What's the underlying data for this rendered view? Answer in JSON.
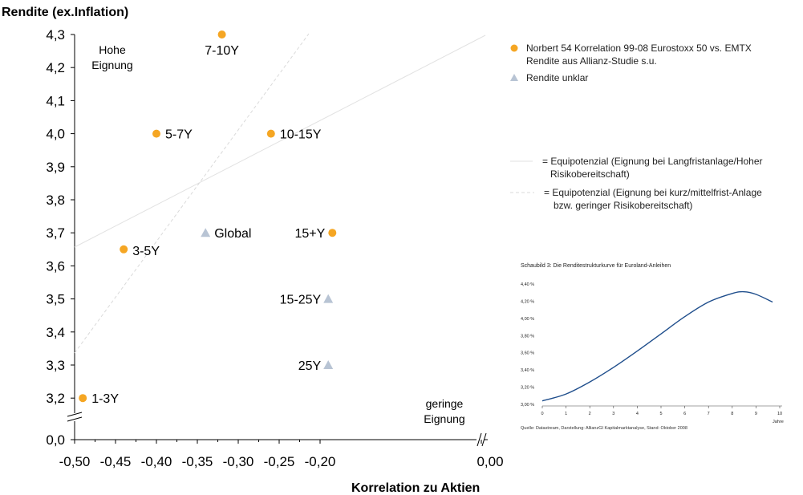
{
  "colors": {
    "orange": "#F5A623",
    "grey_triangle": "#B8C4D4",
    "inset_line": "#1F4E8C",
    "axis": "#000000",
    "equi_line": "#E2E2E2"
  },
  "chart_data": [
    {
      "type": "scatter",
      "title": "",
      "ylabel": "Rendite (ex.Inflation)",
      "xlabel": "Korrelation zu Aktien",
      "xlim": [
        -0.5,
        0.0
      ],
      "ylim": [
        3.15,
        4.3
      ],
      "y_axis_break": true,
      "y_bottom_tick": "0,0",
      "x_ticks": [
        "-0,50",
        "-0,45",
        "-0,40",
        "-0,35",
        "-0,30",
        "-0,25",
        "-0,20",
        "0,00"
      ],
      "y_ticks": [
        "3,2",
        "3,3",
        "3,4",
        "3,5",
        "3,6",
        "3,7",
        "3,8",
        "3,9",
        "4,0",
        "4,1",
        "4,2",
        "4,3"
      ],
      "points": [
        {
          "label": "1-3Y",
          "x": -0.49,
          "y": 3.2,
          "marker": "circle",
          "label_side": "right"
        },
        {
          "label": "3-5Y",
          "x": -0.44,
          "y": 3.65,
          "marker": "circle",
          "label_side": "right-below"
        },
        {
          "label": "5-7Y",
          "x": -0.4,
          "y": 4.0,
          "marker": "circle",
          "label_side": "right"
        },
        {
          "label": "7-10Y",
          "x": -0.32,
          "y": 4.3,
          "marker": "circle",
          "label_side": "below"
        },
        {
          "label": "10-15Y",
          "x": -0.26,
          "y": 4.0,
          "marker": "circle",
          "label_side": "right"
        },
        {
          "label": "15+Y",
          "x": -0.185,
          "y": 3.7,
          "marker": "circle",
          "label_side": "left"
        },
        {
          "label": "Global",
          "x": -0.34,
          "y": 3.7,
          "marker": "triangle",
          "label_side": "right"
        },
        {
          "label": "15-25Y",
          "x": -0.19,
          "y": 3.5,
          "marker": "triangle",
          "label_side": "left"
        },
        {
          "label": "25Y",
          "x": -0.19,
          "y": 3.3,
          "marker": "triangle",
          "label_side": "left"
        }
      ],
      "annotations": [
        {
          "name": "high-suitability",
          "lines": [
            "Hohe",
            "Eignung"
          ]
        },
        {
          "name": "low-suitability",
          "lines": [
            "geringe",
            "Eignung"
          ]
        }
      ],
      "legend": {
        "placement": "right",
        "items": [
          {
            "marker": "circle",
            "lines": [
              "Norbert 54 Korrelation 99-08 Eurostoxx 50 vs. EMTX",
              "Rendite aus Allianz-Studie s.u."
            ]
          },
          {
            "marker": "triangle",
            "lines": [
              "Rendite unklar"
            ]
          },
          {
            "marker": "solid-line",
            "lines": [
              "= Equipotenzial (Eignung bei Langfristanlage/Hoher",
              "Risikobereitschaft)"
            ]
          },
          {
            "marker": "dashed-line",
            "lines": [
              "= Equipotenzial (Eignung bei kurz/mittelfrist-Anlage",
              "bzw. geringer Risikobereitschaft)"
            ]
          }
        ]
      }
    },
    {
      "type": "line",
      "title": "Schaubild 3: Die Renditestrukturkurve für Euroland-Anleihen",
      "xlabel": "Jahre",
      "ylabel": "",
      "x_ticks": [
        "0",
        "1",
        "2",
        "3",
        "4",
        "5",
        "6",
        "7",
        "8",
        "9",
        "10"
      ],
      "y_ticks": [
        "3,00 %",
        "3,20 %",
        "3,40 %",
        "3,60 %",
        "3,80 %",
        "4,00 %",
        "4,20 %",
        "4,40 %"
      ],
      "xlim": [
        0,
        10
      ],
      "ylim": [
        3.0,
        4.4
      ],
      "source": "Quelle: Datastream, Darstellung: AllianzGI Kapitalmarktanalyse, Stand: Oktober 2008",
      "series": [
        {
          "x": [
            0,
            1,
            2,
            3,
            4,
            5,
            6,
            7,
            8,
            8.5,
            9,
            9.7
          ],
          "y": [
            3.04,
            3.12,
            3.26,
            3.43,
            3.62,
            3.82,
            4.02,
            4.19,
            4.29,
            4.31,
            4.28,
            4.19
          ]
        }
      ]
    }
  ]
}
